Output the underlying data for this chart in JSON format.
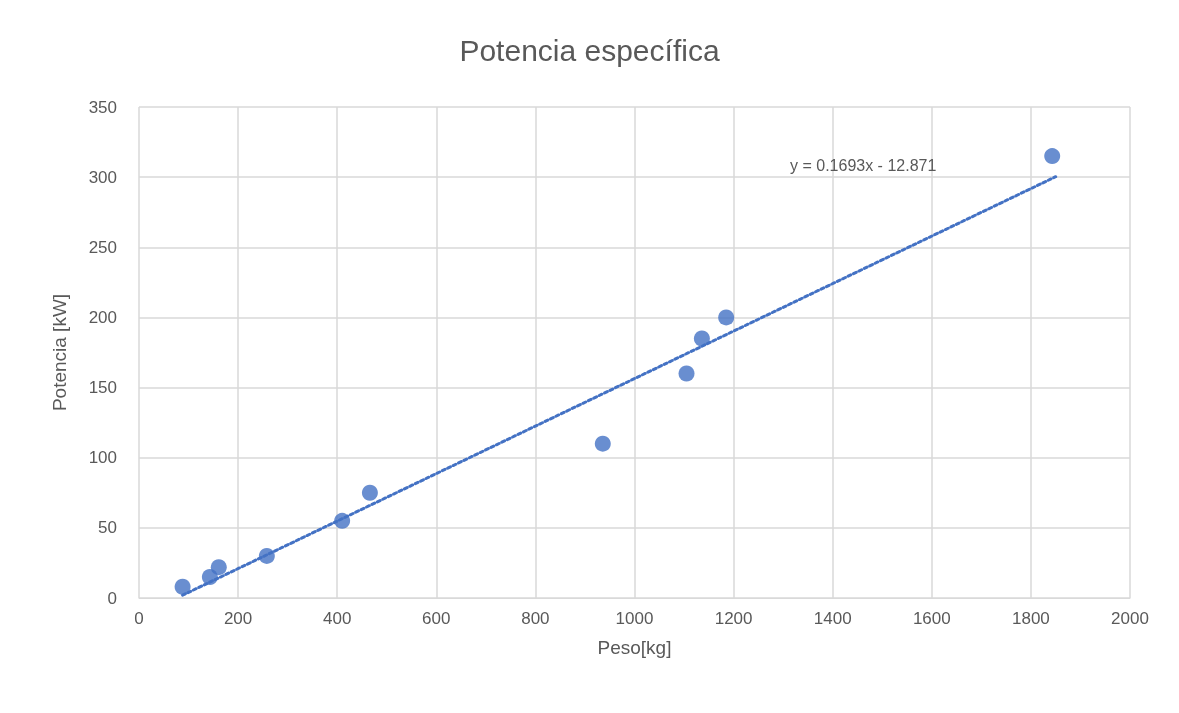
{
  "chart_data": {
    "type": "scatter",
    "title": "Potencia específica",
    "xlabel": "Peso[kg]",
    "ylabel": "Potencia [kW]",
    "series": [
      {
        "color": "#4472c4",
        "marker": "circle",
        "x": [
          88,
          143,
          161,
          258,
          410,
          466,
          936,
          1105,
          1136,
          1185,
          1843
        ],
        "values": [
          8,
          15,
          22,
          30,
          55,
          75,
          110,
          160,
          185,
          200,
          315
        ]
      },
      {
        "type": "line",
        "color": "#4472c4",
        "marker": "none",
        "line_style": "dotted",
        "x": [
          88,
          1850
        ],
        "values": [
          2.0,
          300.3
        ]
      }
    ],
    "annotations": [
      "y = 0.1693x - 12.871"
    ],
    "xlim": [
      0,
      2000
    ],
    "xticks": [
      0,
      200,
      400,
      600,
      800,
      1000,
      1200,
      1400,
      1600,
      1800,
      2000
    ],
    "ylim": [
      0,
      350
    ],
    "yticks": [
      0,
      50,
      100,
      150,
      200,
      250,
      300,
      350
    ],
    "grid": true
  }
}
